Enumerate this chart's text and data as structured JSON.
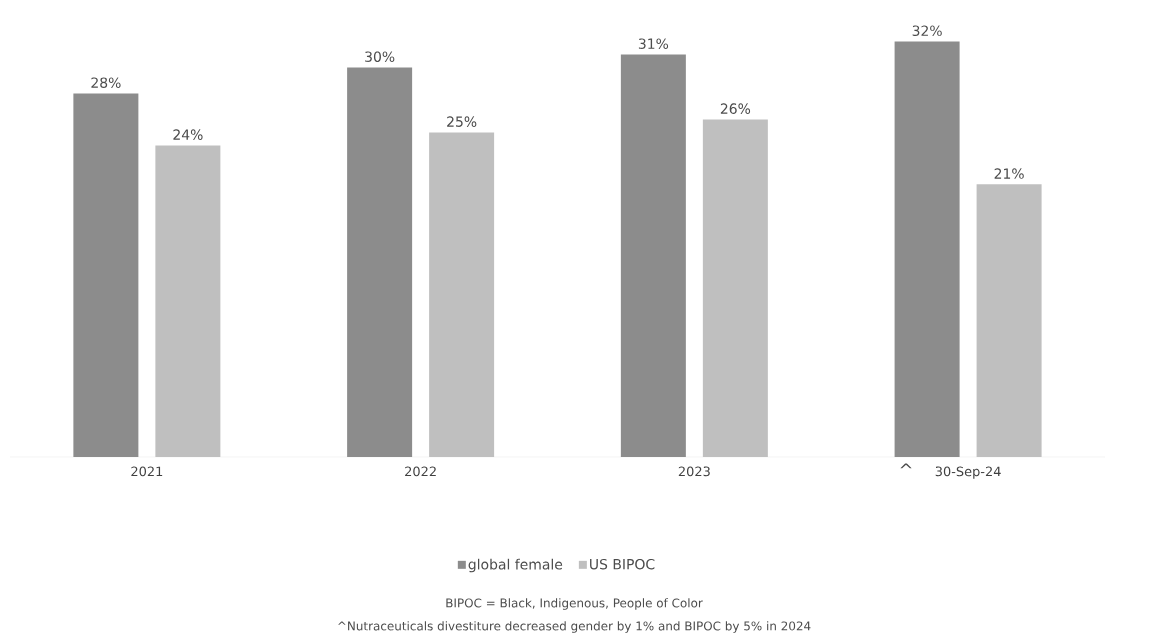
{
  "chart_data": {
    "type": "bar",
    "categories": [
      "2021",
      "2022",
      "2023",
      "30-Sep-24"
    ],
    "series": [
      {
        "name": "global female",
        "color": "#8c8c8c",
        "values": [
          28,
          30,
          31,
          32
        ],
        "value_labels": [
          "28%",
          "30%",
          "31%",
          "32%"
        ]
      },
      {
        "name": "US BIPOC",
        "color": "#bfbfbf",
        "values": [
          24,
          25,
          26,
          21
        ],
        "value_labels": [
          "24%",
          "25%",
          "26%",
          "21%"
        ]
      }
    ],
    "tick_labels": "x",
    "legend": "bottom",
    "annotations": [
      "^",
      "BIPOC = Black, Indigenous, People of Color",
      "^Nutraceuticals divestiture decreased gender by 1% and BIPOC by 5% in 2024"
    ]
  }
}
